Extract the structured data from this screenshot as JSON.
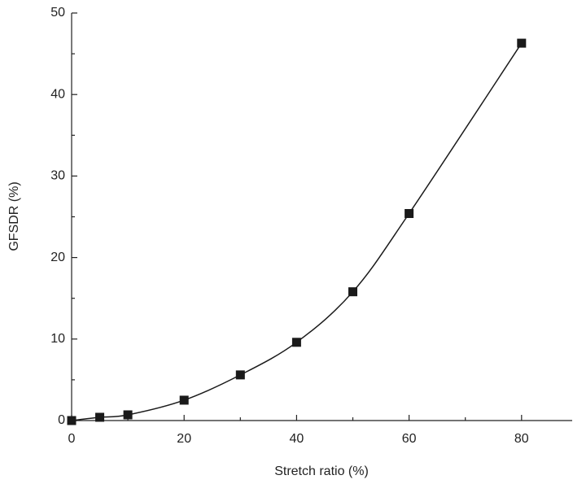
{
  "chart_data": {
    "type": "scatter-line",
    "x_label": "Stretch ratio (%)",
    "y_label": "GFSDR (%)",
    "x": [
      0,
      5,
      10,
      20,
      30,
      40,
      50,
      60,
      80
    ],
    "values": [
      0,
      0.4,
      0.7,
      2.5,
      5.6,
      9.6,
      15.8,
      25.4,
      46.3
    ],
    "color": "#1a1a1a",
    "xlim": [
      0,
      89
    ],
    "xticks": [
      0,
      20,
      40,
      60,
      80
    ],
    "ylim": [
      0,
      50
    ],
    "yticks": [
      0,
      10,
      20,
      30,
      40,
      50
    ]
  }
}
